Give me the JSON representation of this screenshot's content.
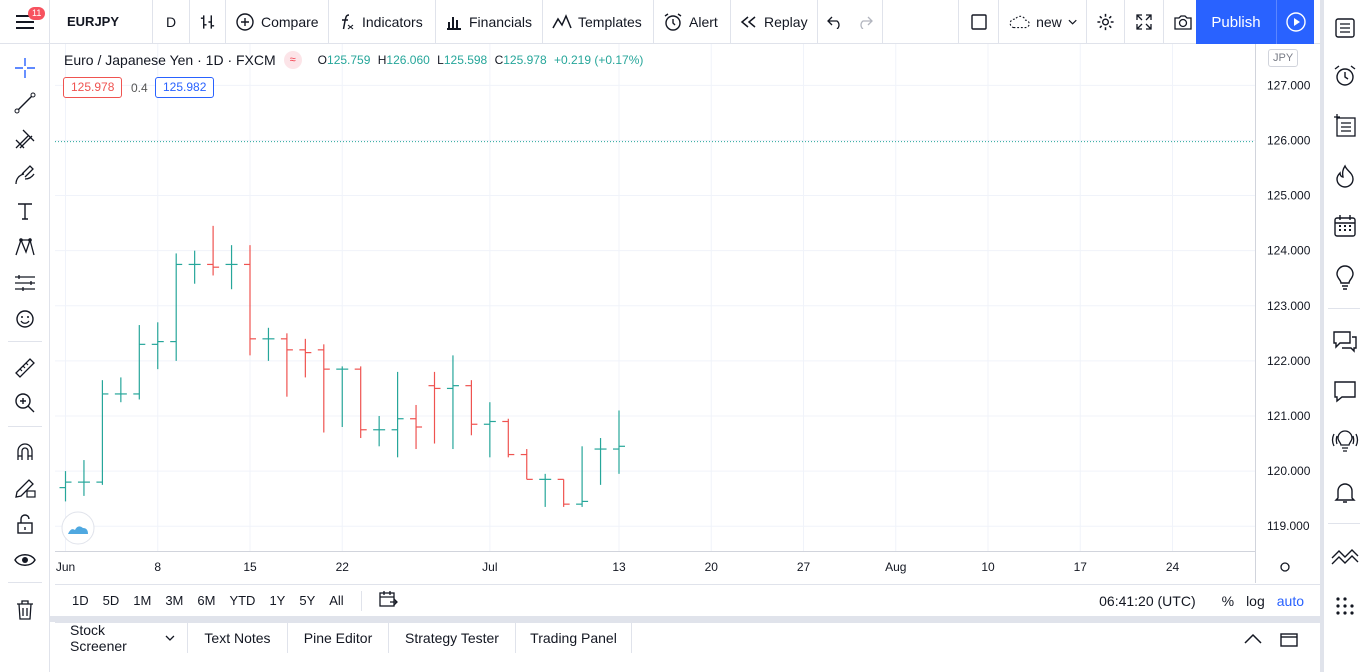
{
  "header": {
    "notification_count": "11",
    "symbol": "EURJPY",
    "interval": "D",
    "compare_label": "Compare",
    "indicators_label": "Indicators",
    "financials_label": "Financials",
    "templates_label": "Templates",
    "alert_label": "Alert",
    "replay_label": "Replay",
    "layout_name": "new",
    "publish_label": "Publish"
  },
  "legend": {
    "title": "Euro / Japanese Yen · 1D · FXCM",
    "open_label": "O",
    "open": "125.759",
    "high_label": "H",
    "high": "126.060",
    "low_label": "L",
    "low": "125.598",
    "close_label": "C",
    "close": "125.978",
    "change": "+0.219 (+0.17%)",
    "bid": "125.978",
    "spread": "0.4",
    "ask": "125.982",
    "currency": "JPY"
  },
  "colors": {
    "up": "#26a69a",
    "down": "#ef5350",
    "accent": "#2962ff",
    "badge": "#f7525f"
  },
  "chart_data": {
    "type": "ohlc",
    "symbol": "EURJPY",
    "interval": "1D",
    "y_ticks": [
      "127.000",
      "126.000",
      "125.000",
      "124.000",
      "123.000",
      "122.000",
      "121.000",
      "120.000",
      "119.000"
    ],
    "ylim": [
      118.55,
      127.75
    ],
    "x_ticks": [
      {
        "i": 0,
        "label": "Jun"
      },
      {
        "i": 5,
        "label": "8"
      },
      {
        "i": 10,
        "label": "15"
      },
      {
        "i": 15,
        "label": "22"
      },
      {
        "i": 23,
        "label": "Jul"
      },
      {
        "i": 30,
        "label": "13"
      },
      {
        "i": 35,
        "label": "20"
      },
      {
        "i": 40,
        "label": "27"
      },
      {
        "i": 45,
        "label": "Aug"
      },
      {
        "i": 50,
        "label": "10"
      },
      {
        "i": 55,
        "label": "17"
      },
      {
        "i": 60,
        "label": "24"
      }
    ],
    "current_price": 125.978,
    "bars": [
      {
        "d": "Jun 1",
        "o": 119.7,
        "h": 120.0,
        "l": 119.45,
        "c": 119.8
      },
      {
        "d": "Jun 2",
        "o": 119.8,
        "h": 120.2,
        "l": 119.55,
        "c": 119.8
      },
      {
        "d": "Jun 3",
        "o": 119.8,
        "h": 121.65,
        "l": 119.75,
        "c": 121.4
      },
      {
        "d": "Jun 4",
        "o": 121.4,
        "h": 121.7,
        "l": 121.25,
        "c": 121.4
      },
      {
        "d": "Jun 5",
        "o": 121.4,
        "h": 122.65,
        "l": 121.3,
        "c": 122.3
      },
      {
        "d": "Jun 8",
        "o": 122.3,
        "h": 122.7,
        "l": 121.85,
        "c": 122.35
      },
      {
        "d": "Jun 9",
        "o": 122.35,
        "h": 123.95,
        "l": 122.0,
        "c": 123.75
      },
      {
        "d": "Jun 10",
        "o": 123.75,
        "h": 124.0,
        "l": 123.4,
        "c": 123.75
      },
      {
        "d": "Jun 11",
        "o": 123.75,
        "h": 124.45,
        "l": 123.55,
        "c": 123.7
      },
      {
        "d": "Jun 12",
        "o": 123.75,
        "h": 124.1,
        "l": 123.3,
        "c": 123.75
      },
      {
        "d": "Jun 15",
        "o": 123.75,
        "h": 124.1,
        "l": 122.1,
        "c": 122.4
      },
      {
        "d": "Jun 16",
        "o": 122.4,
        "h": 122.6,
        "l": 122.0,
        "c": 122.4
      },
      {
        "d": "Jun 17",
        "o": 122.4,
        "h": 122.5,
        "l": 121.35,
        "c": 122.2
      },
      {
        "d": "Jun 18",
        "o": 122.2,
        "h": 122.4,
        "l": 121.7,
        "c": 122.15
      },
      {
        "d": "Jun 19",
        "o": 122.2,
        "h": 122.3,
        "l": 120.7,
        "c": 121.85
      },
      {
        "d": "Jun 22",
        "o": 121.85,
        "h": 121.9,
        "l": 120.8,
        "c": 121.85
      },
      {
        "d": "Jun 23",
        "o": 121.85,
        "h": 121.9,
        "l": 120.6,
        "c": 120.75
      },
      {
        "d": "Jun 24",
        "o": 120.75,
        "h": 121.0,
        "l": 120.45,
        "c": 120.75
      },
      {
        "d": "Jun 25",
        "o": 120.75,
        "h": 121.8,
        "l": 120.25,
        "c": 120.95
      },
      {
        "d": "Jun 26",
        "o": 120.95,
        "h": 121.2,
        "l": 120.4,
        "c": 120.8
      },
      {
        "d": "Jun 29",
        "o": 121.55,
        "h": 121.8,
        "l": 120.5,
        "c": 121.5
      },
      {
        "d": "Jun 30",
        "o": 121.5,
        "h": 122.1,
        "l": 120.4,
        "c": 121.55
      },
      {
        "d": "Jul 1",
        "o": 121.55,
        "h": 121.65,
        "l": 120.65,
        "c": 120.85
      },
      {
        "d": "Jul 2",
        "o": 120.85,
        "h": 121.25,
        "l": 120.25,
        "c": 120.9
      },
      {
        "d": "Jul 3",
        "o": 120.9,
        "h": 120.95,
        "l": 120.25,
        "c": 120.3
      },
      {
        "d": "Jul 6",
        "o": 120.3,
        "h": 120.4,
        "l": 119.85,
        "c": 119.85
      },
      {
        "d": "Jul 7",
        "o": 119.85,
        "h": 119.95,
        "l": 119.35,
        "c": 119.85
      },
      {
        "d": "Jul 8",
        "o": 119.85,
        "h": 119.85,
        "l": 119.35,
        "c": 119.4
      },
      {
        "d": "Jul 9",
        "o": 119.4,
        "h": 120.45,
        "l": 119.35,
        "c": 119.45
      },
      {
        "d": "Jul 10",
        "o": 120.4,
        "h": 120.6,
        "l": 119.75,
        "c": 120.4
      },
      {
        "d": "Jul 13",
        "o": 120.4,
        "h": 121.1,
        "l": 119.95,
        "c": 120.45
      }
    ]
  },
  "range_buttons": [
    "1D",
    "5D",
    "1M",
    "3M",
    "6M",
    "YTD",
    "1Y",
    "5Y",
    "All"
  ],
  "footer": {
    "clock": "06:41:20 (UTC)",
    "percent": "%",
    "log": "log",
    "auto": "auto"
  },
  "panels": [
    "Stock Screener",
    "Text Notes",
    "Pine Editor",
    "Strategy Tester",
    "Trading Panel"
  ]
}
